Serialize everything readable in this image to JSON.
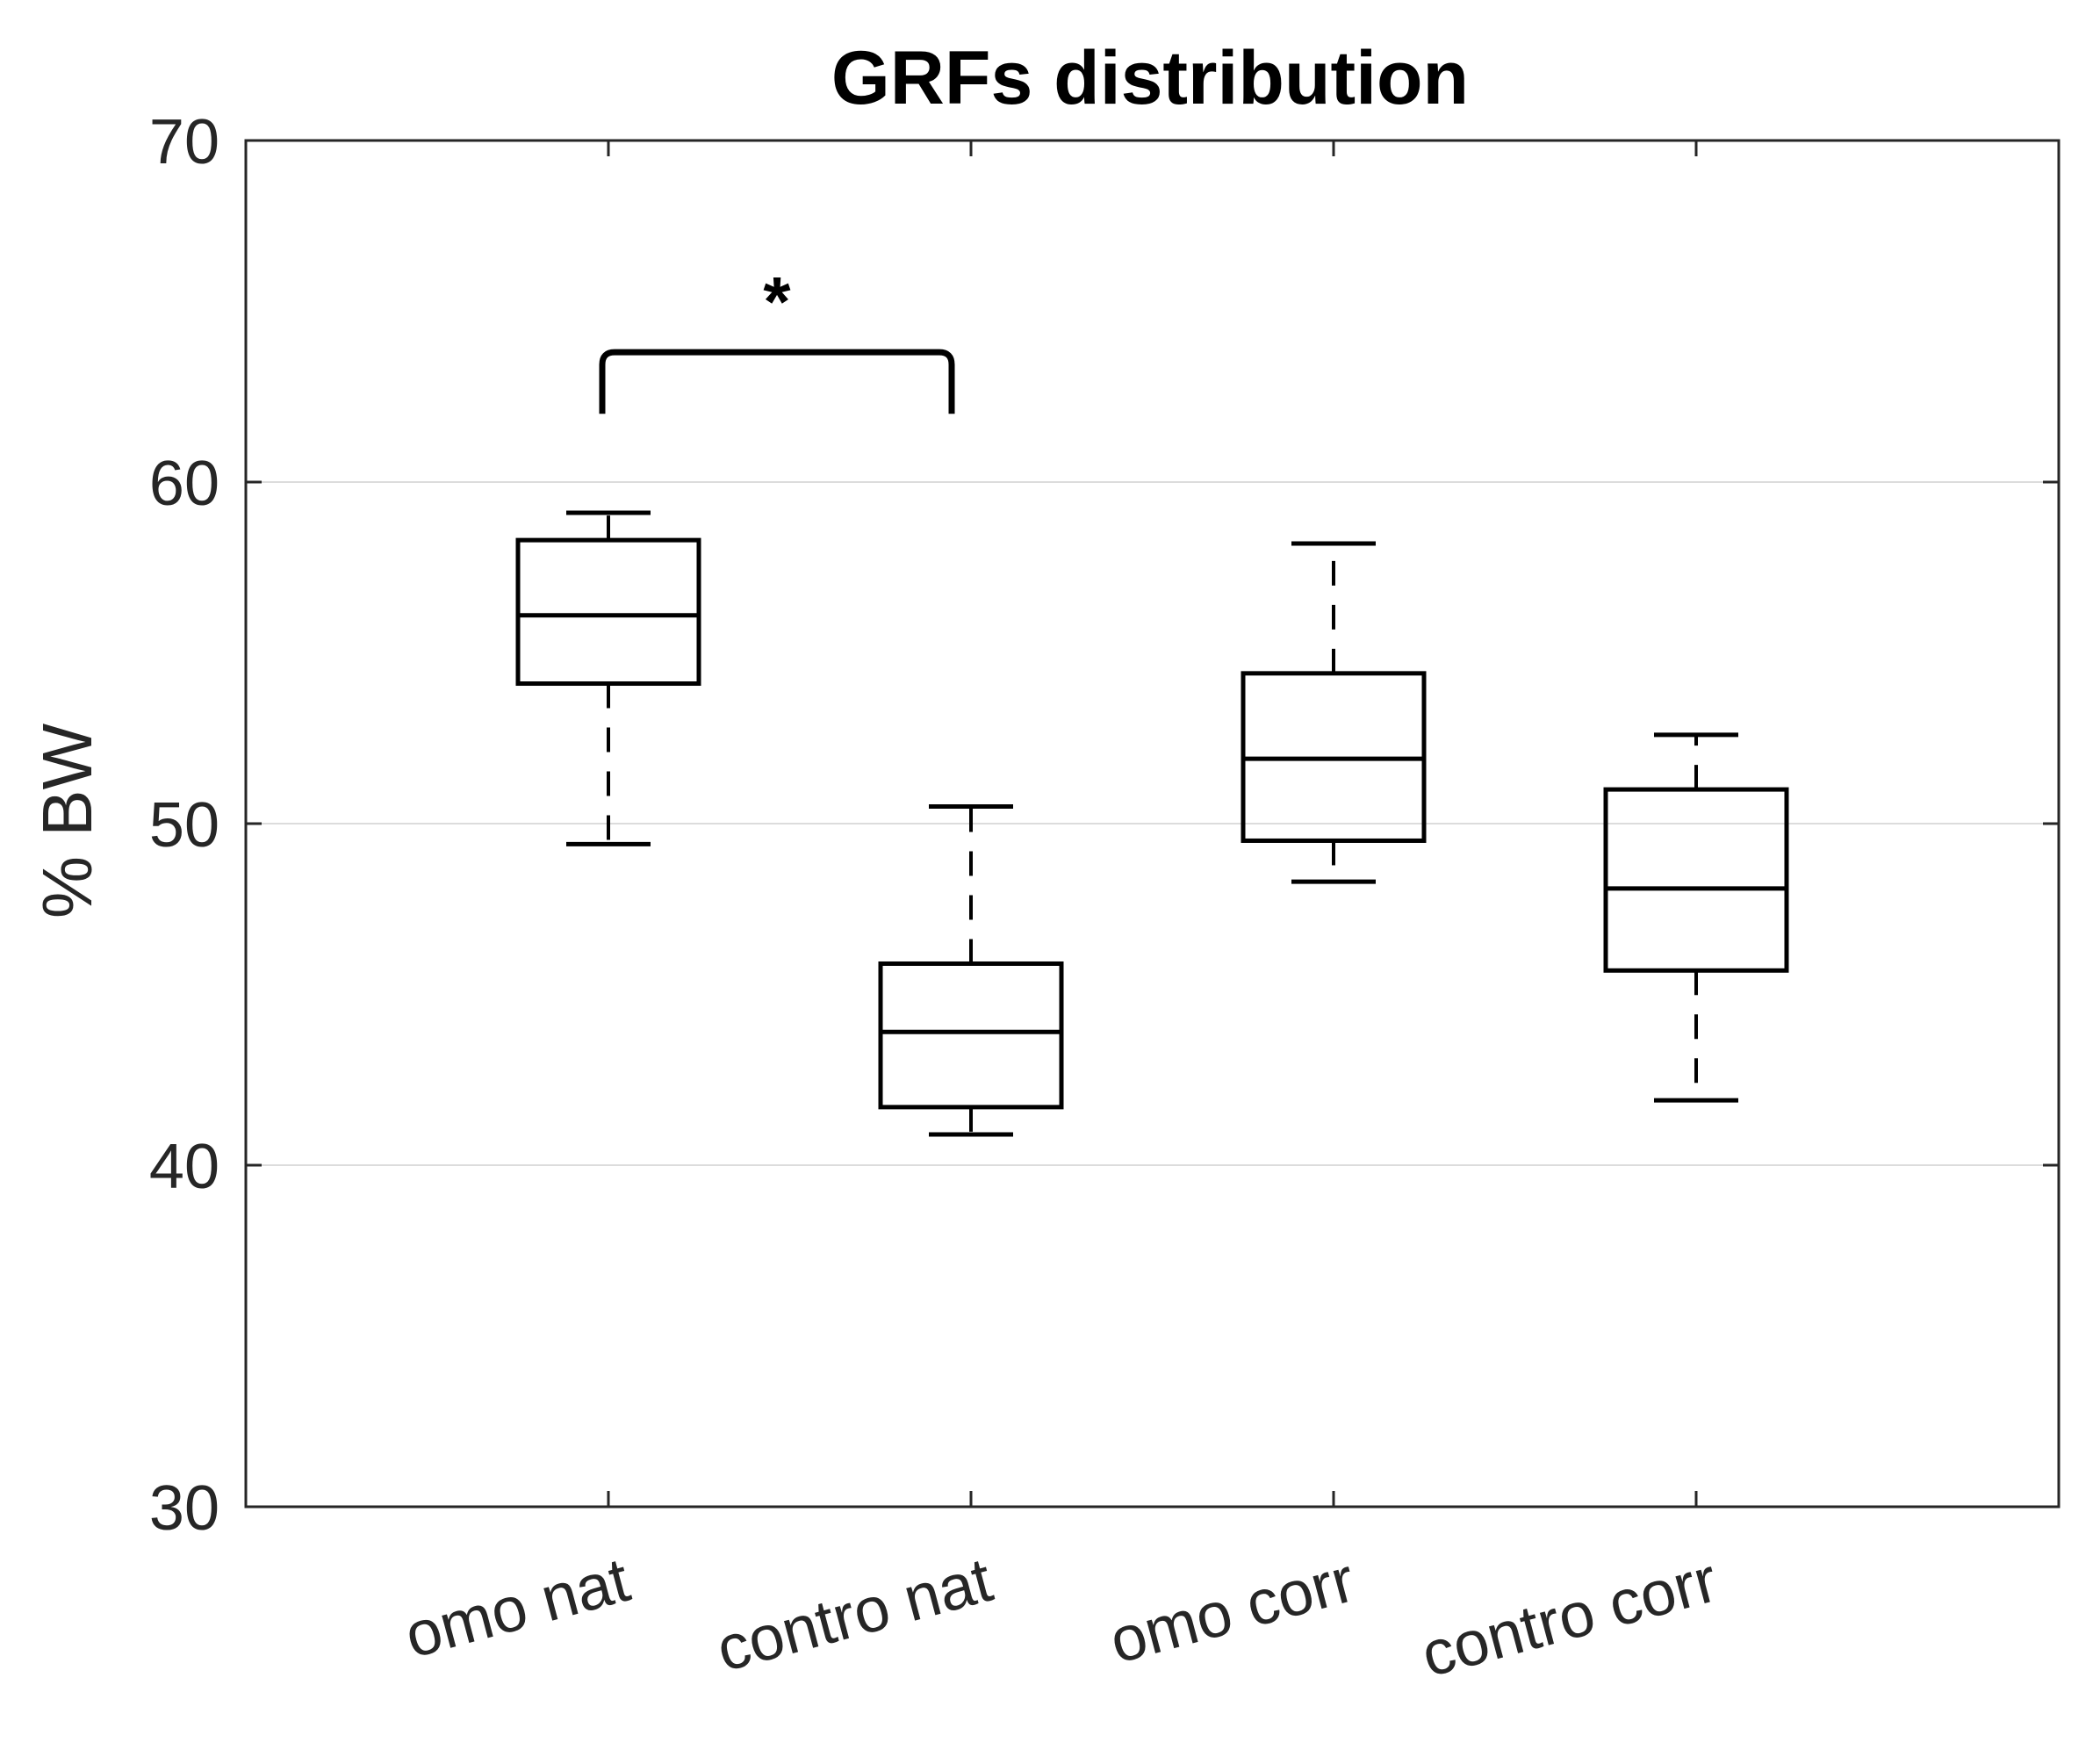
{
  "chart_data": {
    "type": "box",
    "title": "GRFs distribution",
    "xlabel": "",
    "ylabel": "% BW",
    "ylim": [
      30,
      70
    ],
    "yticks": [
      30,
      40,
      50,
      60,
      70
    ],
    "ytick_labels": [
      "30",
      "40",
      "50",
      "60",
      "70"
    ],
    "grid_y": [
      40,
      50,
      60
    ],
    "categories": [
      "omo nat",
      "contro nat",
      "omo corr",
      "contro corr"
    ],
    "boxes": [
      {
        "name": "omo nat",
        "whisker_low": 49.4,
        "q1": 54.1,
        "median": 56.1,
        "q3": 58.3,
        "whisker_high": 59.1
      },
      {
        "name": "contro nat",
        "whisker_low": 40.9,
        "q1": 41.7,
        "median": 43.9,
        "q3": 45.9,
        "whisker_high": 50.5
      },
      {
        "name": "omo corr",
        "whisker_low": 48.3,
        "q1": 49.5,
        "median": 51.9,
        "q3": 54.4,
        "whisker_high": 58.2
      },
      {
        "name": "contro corr",
        "whisker_low": 41.9,
        "q1": 45.7,
        "median": 48.1,
        "q3": 51.0,
        "whisker_high": 52.6
      }
    ],
    "significance": {
      "from": 0,
      "to": 1,
      "label": "*",
      "level": 63.8
    }
  }
}
